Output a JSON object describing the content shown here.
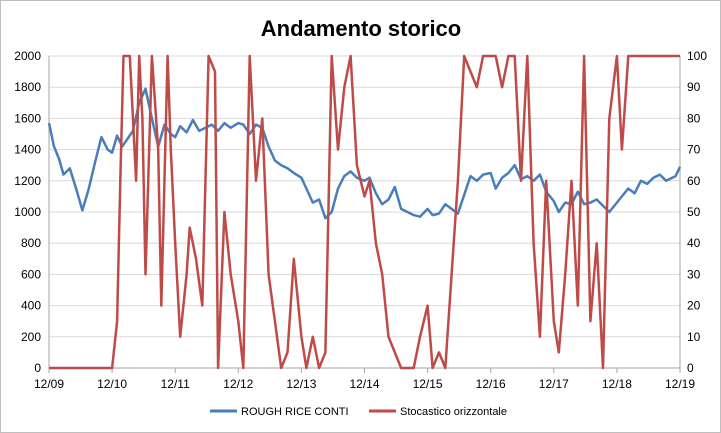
{
  "chart_data": {
    "type": "line",
    "title": "Andamento storico",
    "xlabel": "",
    "ylabel": "",
    "x_tick_labels": [
      "12/09",
      "12/10",
      "12/11",
      "12/12",
      "12/13",
      "12/14",
      "12/15",
      "12/16",
      "12/17",
      "12/18",
      "12/19"
    ],
    "x_range": [
      "12/09",
      "12/19"
    ],
    "y_left_range": [
      0,
      2000
    ],
    "y_left_ticks": [
      "0",
      "200",
      "400",
      "600",
      "800",
      "1000",
      "1200",
      "1400",
      "1600",
      "1800",
      "2000"
    ],
    "y_right_range": [
      0,
      100
    ],
    "y_right_ticks": [
      "0",
      "10",
      "20",
      "30",
      "40",
      "50",
      "60",
      "70",
      "80",
      "90",
      "100"
    ],
    "grid": "horizontal",
    "legend_position": "bottom",
    "colors": {
      "price": "#4a7ebb",
      "stochastic": "#be4b48",
      "grid": "#d9d9d9",
      "axis": "#a6a6a6"
    },
    "series": [
      {
        "name": "ROUGH RICE CONTI",
        "axis": "left",
        "x": [
          2009.92,
          2010.0,
          2010.08,
          2010.15,
          2010.25,
          2010.35,
          2010.45,
          2010.55,
          2010.65,
          2010.75,
          2010.85,
          2010.92,
          2011.0,
          2011.08,
          2011.15,
          2011.25,
          2011.35,
          2011.45,
          2011.55,
          2011.65,
          2011.75,
          2011.85,
          2011.92,
          2012.0,
          2012.1,
          2012.2,
          2012.3,
          2012.4,
          2012.5,
          2012.6,
          2012.7,
          2012.8,
          2012.92,
          2013.0,
          2013.1,
          2013.2,
          2013.3,
          2013.4,
          2013.5,
          2013.6,
          2013.7,
          2013.8,
          2013.92,
          2014.0,
          2014.1,
          2014.2,
          2014.3,
          2014.4,
          2014.5,
          2014.6,
          2014.7,
          2014.8,
          2014.92,
          2015.0,
          2015.1,
          2015.2,
          2015.3,
          2015.4,
          2015.5,
          2015.6,
          2015.7,
          2015.8,
          2015.92,
          2016.0,
          2016.1,
          2016.2,
          2016.3,
          2016.4,
          2016.5,
          2016.6,
          2016.7,
          2016.8,
          2016.92,
          2017.0,
          2017.1,
          2017.2,
          2017.3,
          2017.4,
          2017.5,
          2017.6,
          2017.7,
          2017.8,
          2017.92,
          2018.0,
          2018.1,
          2018.2,
          2018.3,
          2018.4,
          2018.5,
          2018.6,
          2018.7,
          2018.8,
          2018.92,
          2019.0,
          2019.1,
          2019.2,
          2019.3,
          2019.4,
          2019.5,
          2019.6,
          2019.7,
          2019.85,
          2019.92
        ],
        "values": [
          1570,
          1420,
          1340,
          1240,
          1280,
          1150,
          1010,
          1150,
          1320,
          1480,
          1400,
          1380,
          1490,
          1420,
          1460,
          1520,
          1700,
          1790,
          1600,
          1420,
          1560,
          1500,
          1480,
          1550,
          1510,
          1590,
          1520,
          1540,
          1560,
          1520,
          1570,
          1540,
          1570,
          1560,
          1500,
          1560,
          1540,
          1420,
          1330,
          1300,
          1280,
          1250,
          1220,
          1150,
          1060,
          1080,
          960,
          1000,
          1150,
          1230,
          1260,
          1220,
          1200,
          1220,
          1120,
          1050,
          1080,
          1160,
          1020,
          1000,
          980,
          970,
          1020,
          980,
          990,
          1050,
          1020,
          990,
          1110,
          1230,
          1200,
          1240,
          1250,
          1150,
          1220,
          1250,
          1300,
          1210,
          1230,
          1200,
          1240,
          1130,
          1070,
          1000,
          1060,
          1050,
          1130,
          1050,
          1060,
          1080,
          1040,
          1000,
          1060,
          1100,
          1150,
          1120,
          1200,
          1180,
          1220,
          1240,
          1200,
          1230,
          1290
        ]
      },
      {
        "name": "Stocastico orizzontale",
        "axis": "right",
        "x": [
          2009.92,
          2010.5,
          2010.92,
          2011.0,
          2011.05,
          2011.1,
          2011.15,
          2011.2,
          2011.3,
          2011.35,
          2011.4,
          2011.45,
          2011.55,
          2011.65,
          2011.7,
          2011.8,
          2011.85,
          2011.92,
          2012.0,
          2012.1,
          2012.15,
          2012.25,
          2012.35,
          2012.45,
          2012.55,
          2012.6,
          2012.7,
          2012.8,
          2012.92,
          2013.0,
          2013.1,
          2013.2,
          2013.3,
          2013.4,
          2013.5,
          2013.6,
          2013.7,
          2013.8,
          2013.92,
          2014.0,
          2014.1,
          2014.2,
          2014.3,
          2014.4,
          2014.5,
          2014.6,
          2014.7,
          2014.8,
          2014.92,
          2015.0,
          2015.1,
          2015.2,
          2015.3,
          2015.4,
          2015.5,
          2015.6,
          2015.7,
          2015.8,
          2015.92,
          2016.0,
          2016.1,
          2016.2,
          2016.3,
          2016.4,
          2016.5,
          2016.6,
          2016.7,
          2016.8,
          2016.92,
          2017.0,
          2017.1,
          2017.2,
          2017.3,
          2017.4,
          2017.5,
          2017.6,
          2017.7,
          2017.8,
          2017.92,
          2018.0,
          2018.1,
          2018.2,
          2018.3,
          2018.4,
          2018.5,
          2018.6,
          2018.7,
          2018.8,
          2018.92,
          2019.0,
          2019.1,
          2019.2,
          2019.3,
          2019.4,
          2019.5,
          2019.6,
          2019.7,
          2019.85,
          2019.92
        ],
        "values": [
          0,
          0,
          0,
          15,
          60,
          100,
          100,
          100,
          60,
          100,
          80,
          30,
          100,
          70,
          20,
          100,
          70,
          40,
          10,
          30,
          45,
          35,
          20,
          100,
          95,
          0,
          50,
          30,
          15,
          0,
          100,
          60,
          80,
          30,
          15,
          0,
          5,
          35,
          10,
          0,
          10,
          0,
          5,
          100,
          70,
          90,
          100,
          65,
          55,
          60,
          40,
          30,
          10,
          5,
          0,
          0,
          0,
          10,
          20,
          0,
          5,
          0,
          30,
          60,
          100,
          95,
          90,
          100,
          100,
          100,
          90,
          100,
          100,
          60,
          100,
          40,
          10,
          60,
          15,
          5,
          30,
          60,
          20,
          100,
          15,
          40,
          0,
          80,
          100,
          70,
          100,
          100,
          100,
          100,
          100,
          100,
          100,
          100,
          100
        ]
      }
    ]
  }
}
